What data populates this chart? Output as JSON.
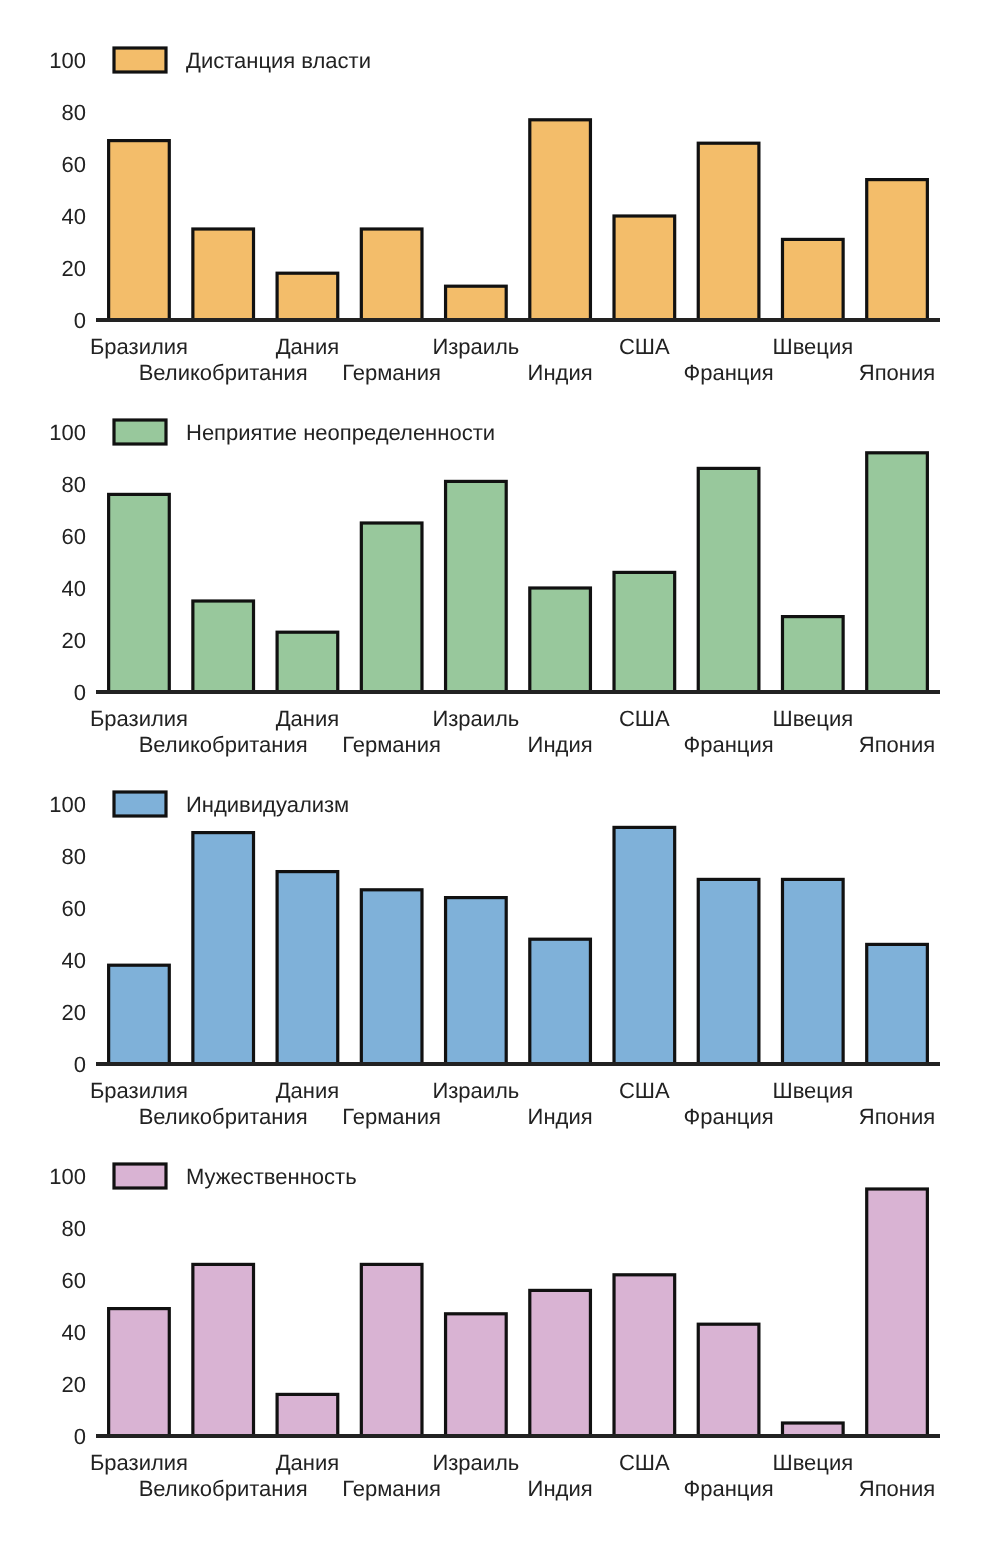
{
  "chart_data": [
    {
      "type": "bar",
      "categories": [
        "Бразилия",
        "Великобритания",
        "Дания",
        "Германия",
        "Израиль",
        "Индия",
        "США",
        "Франция",
        "Швеция",
        "Япония"
      ],
      "series": [
        {
          "name": "Дистанция власти",
          "color": "#f3bd6a",
          "values": [
            69,
            35,
            18,
            35,
            13,
            77,
            40,
            68,
            31,
            54
          ]
        }
      ],
      "ylim": [
        0,
        100
      ],
      "yticks": [
        0,
        20,
        40,
        60,
        80,
        100
      ],
      "legend": "top left"
    },
    {
      "type": "bar",
      "categories": [
        "Бразилия",
        "Великобритания",
        "Дания",
        "Германия",
        "Израиль",
        "Индия",
        "США",
        "Франция",
        "Швеция",
        "Япония"
      ],
      "series": [
        {
          "name": "Неприятие неопределенности",
          "color": "#98c89c",
          "values": [
            76,
            35,
            23,
            65,
            81,
            40,
            46,
            86,
            29,
            92
          ]
        }
      ],
      "ylim": [
        0,
        100
      ],
      "yticks": [
        0,
        20,
        40,
        60,
        80,
        100
      ],
      "legend": "top left"
    },
    {
      "type": "bar",
      "categories": [
        "Бразилия",
        "Великобритания",
        "Дания",
        "Германия",
        "Израиль",
        "Индия",
        "США",
        "Франция",
        "Швеция",
        "Япония"
      ],
      "series": [
        {
          "name": "Индивидуализм",
          "color": "#7fb1d9",
          "values": [
            38,
            89,
            74,
            67,
            64,
            48,
            91,
            71,
            71,
            46
          ]
        }
      ],
      "ylim": [
        0,
        100
      ],
      "yticks": [
        0,
        20,
        40,
        60,
        80,
        100
      ],
      "legend": "top left"
    },
    {
      "type": "bar",
      "categories": [
        "Бразилия",
        "Великобритания",
        "Дания",
        "Германия",
        "Израиль",
        "Индия",
        "США",
        "Франция",
        "Швеция",
        "Япония"
      ],
      "series": [
        {
          "name": "Мужественность",
          "color": "#d9b3d3",
          "values": [
            49,
            66,
            16,
            66,
            47,
            56,
            62,
            43,
            5,
            95
          ]
        }
      ],
      "ylim": [
        0,
        100
      ],
      "yticks": [
        0,
        20,
        40,
        60,
        80,
        100
      ],
      "legend": "top left"
    }
  ]
}
